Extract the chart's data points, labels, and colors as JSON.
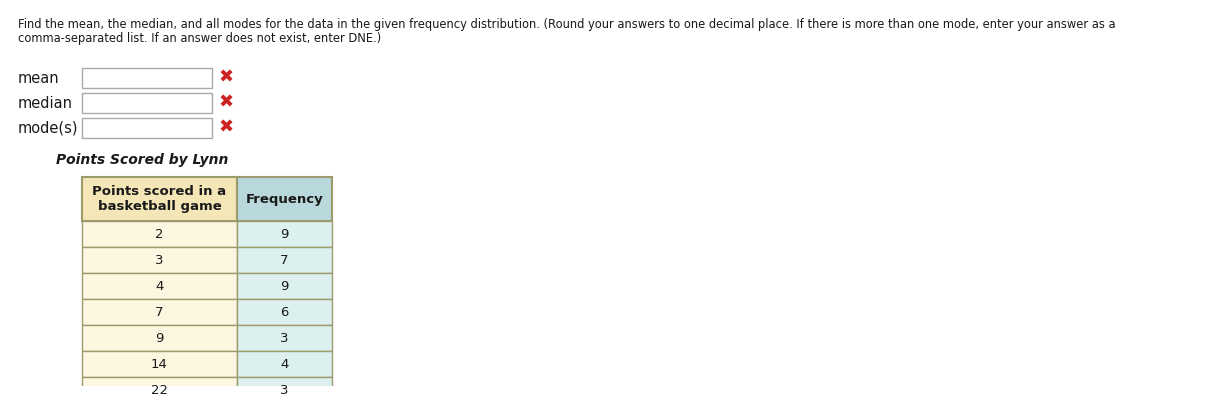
{
  "title_line1": "Find the mean, the median, and all modes for the data in the given frequency distribution. (Round your answers to one decimal place. If there is more than one mode, enter your answer as a",
  "title_line2": "comma-separated list. If an answer does not exist, enter DNE.)",
  "fields": [
    "mean",
    "median",
    "mode(s)"
  ],
  "table_title": "Points Scored by Lynn",
  "col1_header_line1": "Points scored in a",
  "col1_header_line2": "basketball game",
  "col2_header": "Frequency",
  "points": [
    2,
    3,
    4,
    7,
    9,
    14,
    22
  ],
  "frequencies": [
    9,
    7,
    9,
    6,
    3,
    4,
    3
  ],
  "header_bg1": "#F5E6B8",
  "header_bg2": "#B8D8DC",
  "row_bg1": "#FDF6E0",
  "row_bg2": "#DCF0F0",
  "border_color": "#9B9B6B",
  "text_color": "#1a1a1a",
  "input_box_edge": "#AAAAAA",
  "input_box_color": "#FFFFFF",
  "x_color": "#CC2222",
  "bg_color": "#FFFFFF",
  "instr_fontsize": 8.3,
  "field_fontsize": 10.5,
  "table_title_fontsize": 10,
  "header_fontsize": 9.5,
  "data_fontsize": 9.5
}
